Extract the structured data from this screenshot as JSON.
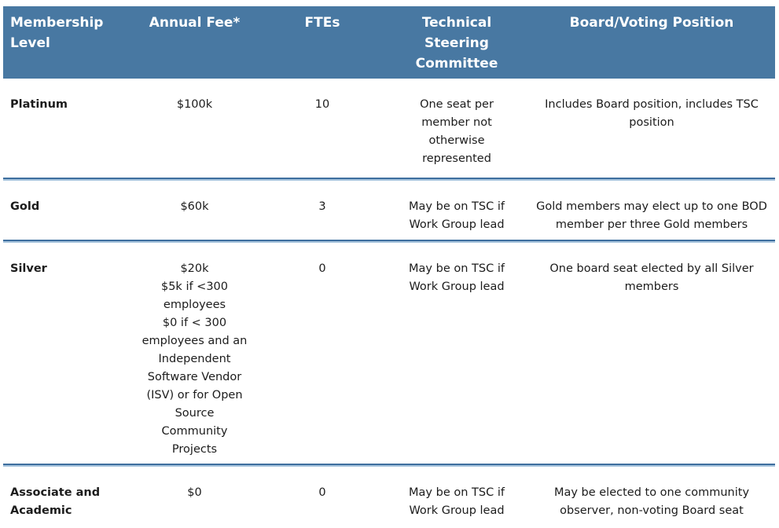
{
  "theme": {
    "header_bg": "#4878A2",
    "header_text": "#FFFFFF",
    "sep_dark": "#3E6E9E",
    "sep_light": "#A5C3DC",
    "body_text": "#1C1C1C",
    "page_bg": "#FFFFFF"
  },
  "table": {
    "columns": [
      {
        "label": "Membership\nLevel"
      },
      {
        "label": "Annual Fee*"
      },
      {
        "label": "FTEs"
      },
      {
        "label": "Technical\nSteering\nCommittee"
      },
      {
        "label": "Board/Voting Position"
      }
    ],
    "rows": [
      {
        "level": "Platinum",
        "annual_fee": "$100k",
        "ftes": "10",
        "tsc": "One seat per\nmember not\notherwise\nrepresented",
        "board_voting": "Includes Board position, includes TSC\nposition"
      },
      {
        "level": "Gold",
        "annual_fee": "$60k",
        "ftes": "3",
        "tsc": "May be on TSC if\nWork Group lead",
        "board_voting": "Gold members may elect up to one BOD\nmember per three Gold members"
      },
      {
        "level": "Silver",
        "annual_fee": "$20k\n$5k if <300\nemployees\n$0 if < 300\nemployees and an\nIndependent\nSoftware Vendor\n(ISV) or for Open\nSource\nCommunity\nProjects",
        "ftes": "0",
        "tsc": "May be on TSC if\nWork Group lead",
        "board_voting": "One board seat elected by all Silver\nmembers"
      },
      {
        "level": "Associate and\nAcademic",
        "annual_fee": "$0",
        "ftes": "0",
        "tsc": "May be on TSC if\nWork Group lead",
        "board_voting": "May be elected to one community\nobserver, non-voting Board seat"
      }
    ]
  }
}
